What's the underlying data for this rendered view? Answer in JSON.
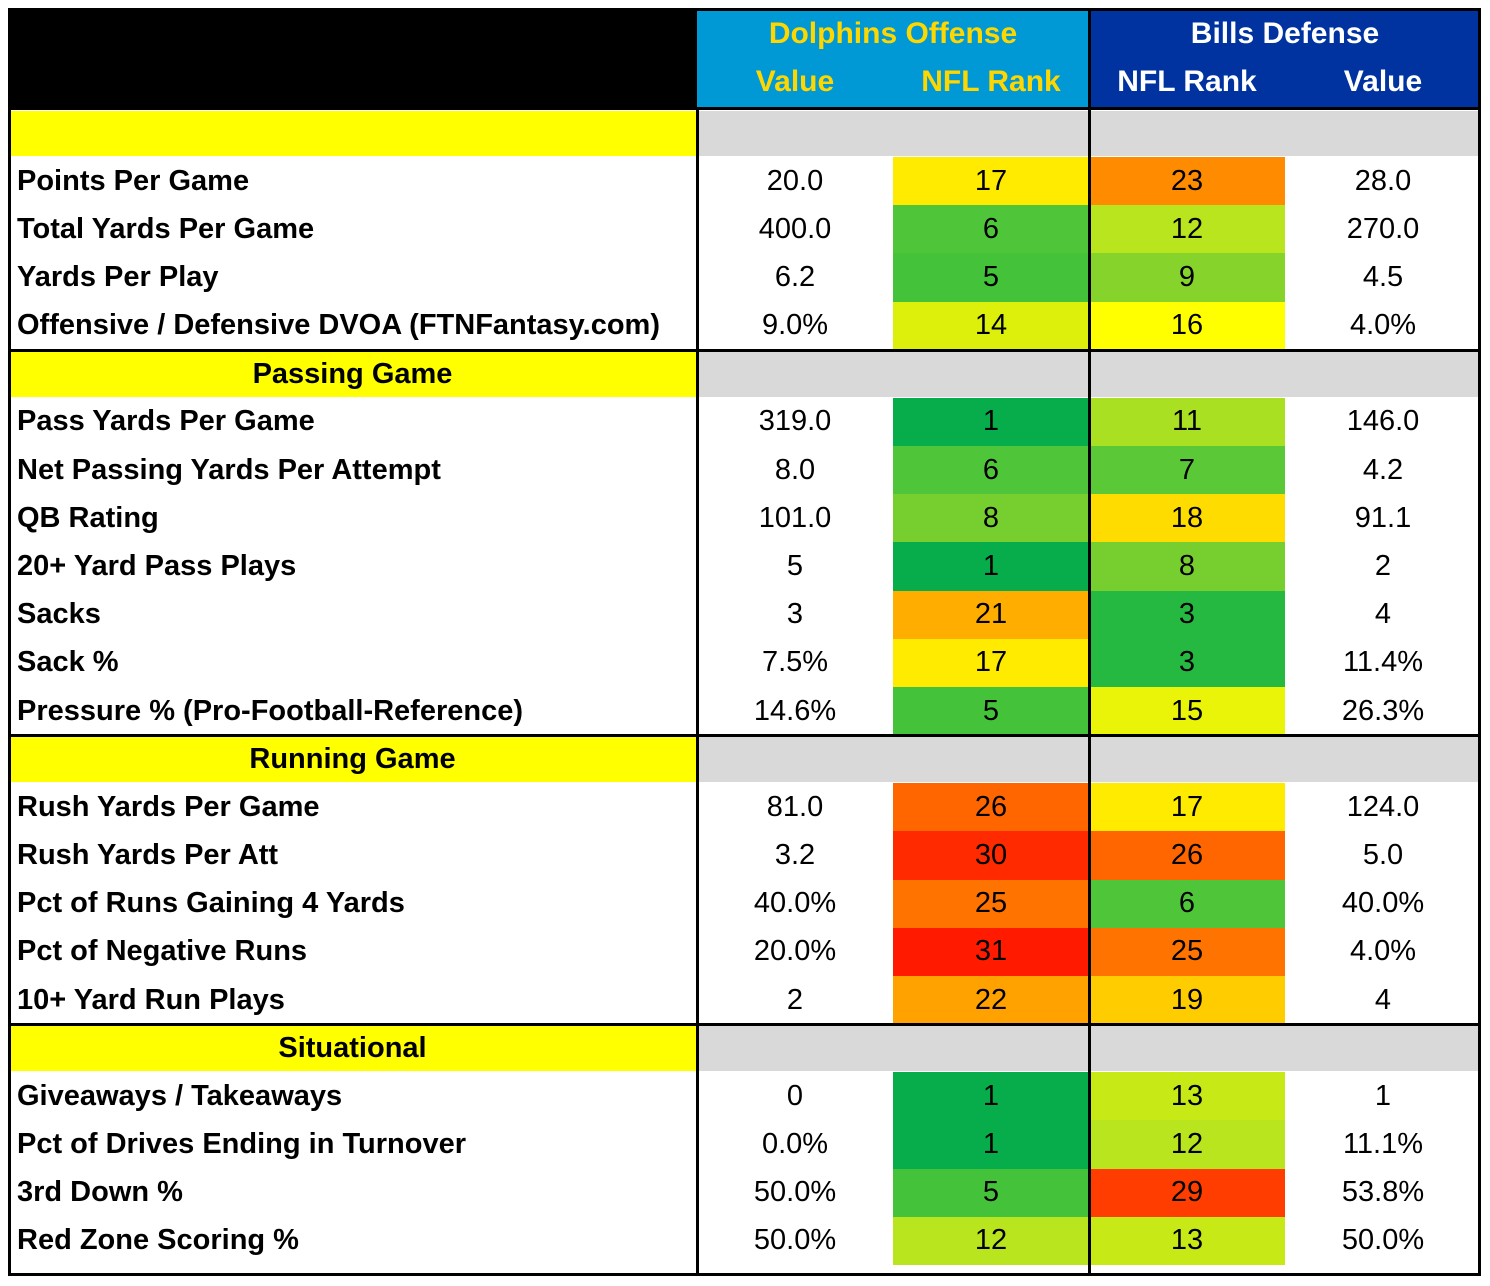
{
  "header": {
    "offense_team": "Dolphins Offense",
    "defense_team": "Bills Defense",
    "col_value": "Value",
    "col_rank": "NFL Rank",
    "offense_bg": "#0099d6",
    "offense_text": "#ffd700",
    "defense_bg": "#0033a0",
    "defense_text": "#ffffff"
  },
  "sections": [
    {
      "title": "",
      "rows": [
        {
          "label": "Points Per Game",
          "off_value": "20.0",
          "off_rank": "17",
          "def_rank": "23",
          "def_value": "28.0",
          "off_color": "#ffeb00",
          "def_color": "#ff8c00"
        },
        {
          "label": "Total Yards Per Game",
          "off_value": "400.0",
          "off_rank": "6",
          "def_rank": "12",
          "def_value": "270.0",
          "off_color": "#4fc63a",
          "def_color": "#b8e51e"
        },
        {
          "label": "Yards Per Play",
          "off_value": "6.2",
          "off_rank": "5",
          "def_rank": "9",
          "def_value": "4.5",
          "off_color": "#44c23a",
          "def_color": "#85d32b"
        },
        {
          "label": "Offensive / Defensive DVOA (FTNFantasy.com)",
          "off_value": "9.0%",
          "off_rank": "14",
          "def_rank": "16",
          "def_value": "4.0%",
          "off_color": "#dcf00c",
          "def_color": "#ffff00"
        }
      ]
    },
    {
      "title": "Passing Game",
      "rows": [
        {
          "label": "Pass Yards Per Game",
          "off_value": "319.0",
          "off_rank": "1",
          "def_rank": "11",
          "def_value": "146.0",
          "off_color": "#08ad4b",
          "def_color": "#a9e021"
        },
        {
          "label": "Net Passing Yards Per Attempt",
          "off_value": "8.0",
          "off_rank": "6",
          "def_rank": "7",
          "def_value": "4.2",
          "off_color": "#4fc63a",
          "def_color": "#5bc937"
        },
        {
          "label": "QB Rating",
          "off_value": "101.0",
          "off_rank": "8",
          "def_rank": "18",
          "def_value": "91.1",
          "off_color": "#76cf2f",
          "def_color": "#ffdc00"
        },
        {
          "label": "20+ Yard Pass Plays",
          "off_value": "5",
          "off_rank": "1",
          "def_rank": "8",
          "def_value": "2",
          "off_color": "#08ad4b",
          "def_color": "#76cf2f"
        },
        {
          "label": "Sacks",
          "off_value": "3",
          "off_rank": "21",
          "def_rank": "3",
          "def_value": "4",
          "off_color": "#ffae00",
          "def_color": "#25b942"
        },
        {
          "label": "Sack %",
          "off_value": "7.5%",
          "off_rank": "17",
          "def_rank": "3",
          "def_value": "11.4%",
          "off_color": "#ffeb00",
          "def_color": "#25b942"
        },
        {
          "label": "Pressure % (Pro-Football-Reference)",
          "off_value": "14.6%",
          "off_rank": "5",
          "def_rank": "15",
          "def_value": "26.3%",
          "off_color": "#44c23a",
          "def_color": "#eaf408"
        }
      ]
    },
    {
      "title": "Running Game",
      "rows": [
        {
          "label": "Rush Yards Per Game",
          "off_value": "81.0",
          "off_rank": "26",
          "def_rank": "17",
          "def_value": "124.0",
          "off_color": "#ff6600",
          "def_color": "#ffeb00"
        },
        {
          "label": "Rush Yards Per Att",
          "off_value": "3.2",
          "off_rank": "30",
          "def_rank": "26",
          "def_value": "5.0",
          "off_color": "#ff2a00",
          "def_color": "#ff6600"
        },
        {
          "label": "Pct of Runs Gaining 4 Yards",
          "off_value": "40.0%",
          "off_rank": "25",
          "def_rank": "6",
          "def_value": "40.0%",
          "off_color": "#ff7300",
          "def_color": "#4fc63a"
        },
        {
          "label": "Pct of Negative Runs",
          "off_value": "20.0%",
          "off_rank": "31",
          "def_rank": "25",
          "def_value": "4.0%",
          "off_color": "#ff1a00",
          "def_color": "#ff7300"
        },
        {
          "label": "10+ Yard Run Plays",
          "off_value": "2",
          "off_rank": "22",
          "def_rank": "19",
          "def_value": "4",
          "off_color": "#ffa200",
          "def_color": "#ffcc00"
        }
      ]
    },
    {
      "title": "Situational",
      "rows": [
        {
          "label": "Giveaways / Takeaways",
          "off_value": "0",
          "off_rank": "1",
          "def_rank": "13",
          "def_value": "1",
          "off_color": "#08ad4b",
          "def_color": "#c7ea16"
        },
        {
          "label": "Pct of Drives Ending in Turnover",
          "off_value": "0.0%",
          "off_rank": "1",
          "def_rank": "12",
          "def_value": "11.1%",
          "off_color": "#08ad4b",
          "def_color": "#b8e51e"
        },
        {
          "label": "3rd Down %",
          "off_value": "50.0%",
          "off_rank": "5",
          "def_rank": "29",
          "def_value": "53.8%",
          "off_color": "#44c23a",
          "def_color": "#ff3d00"
        },
        {
          "label": "Red Zone Scoring %",
          "off_value": "50.0%",
          "off_rank": "12",
          "def_rank": "13",
          "def_value": "50.0%",
          "off_color": "#b8e51e",
          "def_color": "#c7ea16"
        }
      ]
    }
  ]
}
